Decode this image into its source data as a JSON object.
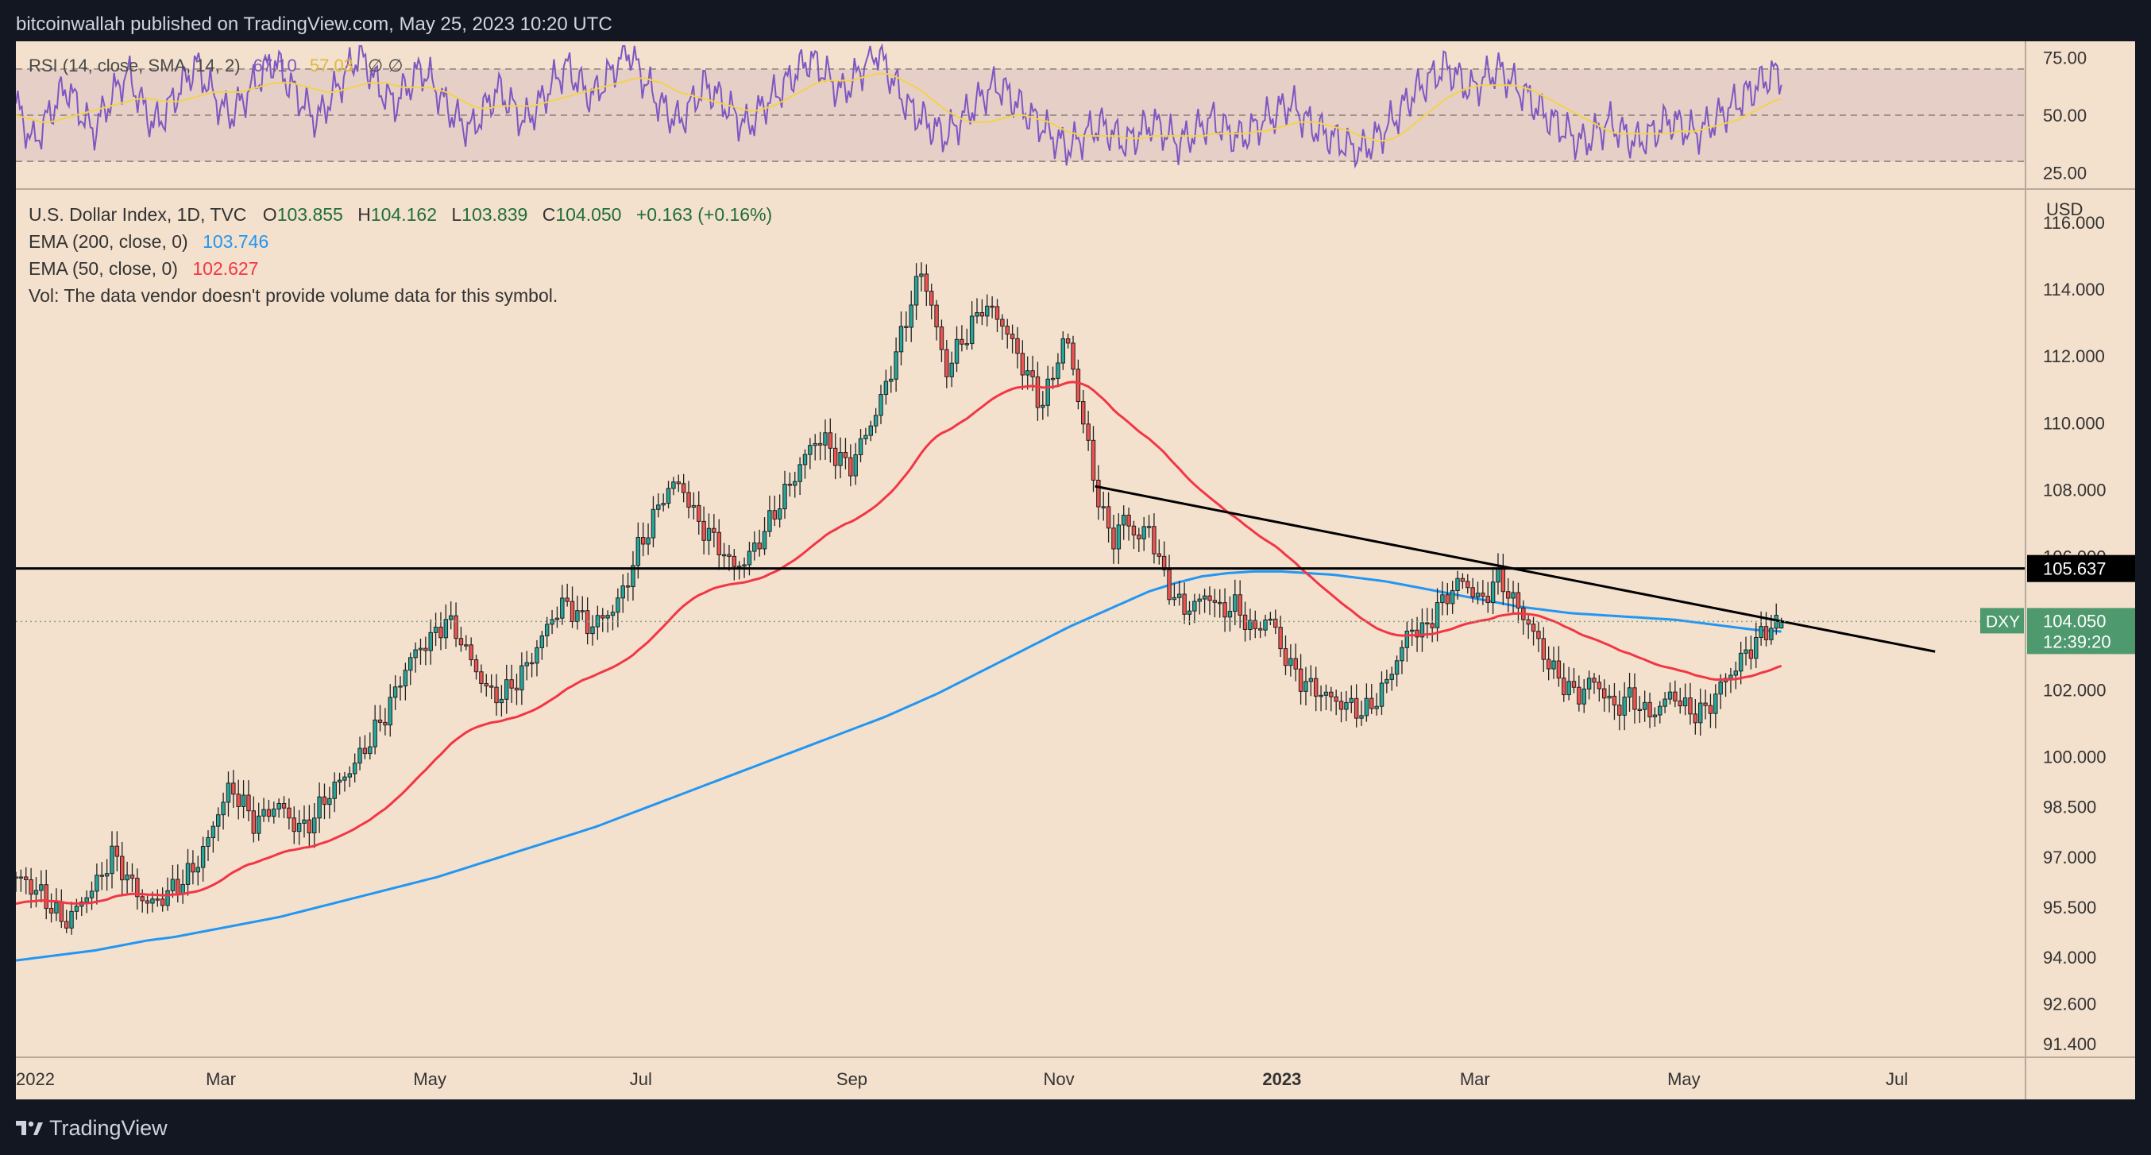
{
  "header": {
    "published_by": "bitcoinwallah published on TradingView.com, May 25, 2023 10:20 UTC"
  },
  "footer": {
    "brand": "TradingView"
  },
  "chart_data": [
    {
      "type": "line",
      "panel": "RSI",
      "indicator_label": "RSI (14, close, SMA, 14, 2)",
      "rsi_value": "67.10",
      "rsi_sma_value": "57.03",
      "extra_glyphs": "∅  ∅",
      "y_ticks": [
        "75.00",
        "50.00",
        "25.00"
      ],
      "ylim": [
        18,
        82
      ],
      "bands": [
        30,
        50,
        70
      ],
      "colors": {
        "rsi": "#7e57c2",
        "sma": "#f2d34b",
        "band_fill": "#e6cfc7"
      },
      "rsi_series": [
        55,
        46,
        38,
        44,
        51,
        58,
        62,
        55,
        48,
        43,
        50,
        57,
        63,
        68,
        60,
        52,
        46,
        49,
        55,
        61,
        67,
        72,
        65,
        58,
        53,
        50,
        55,
        60,
        65,
        70,
        74,
        68,
        62,
        57,
        52,
        48,
        54,
        60,
        66,
        72,
        77,
        70,
        63,
        58,
        55,
        60,
        65,
        70,
        66,
        60,
        54,
        49,
        46,
        44,
        50,
        56,
        61,
        57,
        52,
        47,
        51,
        56,
        62,
        67,
        71,
        66,
        61,
        58,
        63,
        68,
        73,
        79,
        72,
        65,
        59,
        54,
        50,
        47,
        52,
        58,
        63,
        60,
        56,
        52,
        48,
        45,
        50,
        55,
        58,
        62,
        66,
        70,
        74,
        72,
        68,
        63,
        60,
        64,
        69,
        74,
        78,
        71,
        64,
        57,
        52,
        49,
        46,
        43,
        41,
        45,
        49,
        53,
        57,
        61,
        63,
        60,
        56,
        52,
        49,
        46,
        42,
        39,
        36,
        38,
        41,
        44,
        46,
        43,
        40,
        38,
        41,
        44,
        47,
        44,
        41,
        38,
        40,
        43,
        46,
        48,
        45,
        42,
        40,
        42,
        45,
        48,
        50,
        53,
        55,
        51,
        47,
        44,
        42,
        40,
        38,
        36,
        34,
        37,
        40,
        44,
        48,
        53,
        58,
        62,
        65,
        68,
        71,
        68,
        64,
        61,
        64,
        67,
        70,
        67,
        63,
        60,
        56,
        52,
        49,
        46,
        43,
        40,
        38,
        41,
        44,
        47,
        44,
        41,
        38,
        40,
        42,
        45,
        48,
        46,
        44,
        42,
        44,
        47,
        50,
        53,
        56,
        59,
        62,
        65,
        68,
        67.1
      ],
      "sma_series": [
        50,
        49,
        48,
        47,
        47,
        48,
        49,
        50,
        51,
        52,
        53,
        54,
        55,
        56,
        57,
        57,
        57,
        56,
        56,
        56,
        57,
        58,
        59,
        60,
        60,
        60,
        60,
        61,
        62,
        63,
        64,
        64,
        64,
        63,
        62,
        61,
        60,
        60,
        61,
        62,
        63,
        64,
        64,
        64,
        63,
        62,
        62,
        62,
        62,
        61,
        60,
        58,
        56,
        54,
        53,
        53,
        54,
        54,
        54,
        54,
        54,
        55,
        56,
        57,
        58,
        59,
        60,
        61,
        62,
        63,
        64,
        65,
        66,
        66,
        65,
        64,
        62,
        60,
        59,
        58,
        57,
        56,
        55,
        54,
        53,
        52,
        52,
        53,
        54,
        56,
        58,
        60,
        62,
        64,
        65,
        65,
        65,
        65,
        66,
        67,
        68,
        68,
        67,
        65,
        63,
        61,
        58,
        55,
        52,
        50,
        48,
        47,
        47,
        47,
        48,
        49,
        50,
        50,
        49,
        48,
        47,
        45,
        43,
        42,
        41,
        41,
        41,
        41,
        41,
        40,
        40,
        40,
        41,
        41,
        41,
        41,
        41,
        41,
        41,
        42,
        42,
        42,
        42,
        42,
        43,
        43,
        44,
        45,
        46,
        47,
        47,
        47,
        46,
        45,
        44,
        43,
        41,
        40,
        39,
        39,
        40,
        42,
        45,
        48,
        51,
        54,
        57,
        59,
        61,
        62,
        63,
        63,
        63,
        63,
        63,
        62,
        61,
        59,
        57,
        55,
        53,
        51,
        49,
        47,
        45,
        43,
        42,
        42,
        42,
        42,
        42,
        42,
        42,
        43,
        43,
        43,
        44,
        45,
        46,
        47,
        48,
        50,
        52,
        54,
        56,
        57.03
      ]
    },
    {
      "type": "candlestick",
      "panel": "price",
      "symbol_line": "U.S. Dollar Index, 1D, TVC",
      "ohlc": {
        "O": "103.855",
        "H": "104.162",
        "L": "103.839",
        "C": "104.050",
        "change": "+0.163 (+0.16%)"
      },
      "ema200_label": "EMA (200, close, 0)",
      "ema200_value": "103.746",
      "ema50_label": "EMA (50, close, 0)",
      "ema50_value": "102.627",
      "volume_note": "Vol: The data vendor doesn't provide volume data for this symbol.",
      "currency_label": "USD",
      "y_ticks": [
        "116.000",
        "114.000",
        "112.000",
        "110.000",
        "108.000",
        "106.000",
        "104.000",
        "102.000",
        "100.000",
        "98.500",
        "97.000",
        "95.500",
        "94.000",
        "92.600",
        "91.400"
      ],
      "x_ticks": [
        "2022",
        "Mar",
        "May",
        "Jul",
        "Sep",
        "Nov",
        "2023",
        "Mar",
        "May",
        "Jul"
      ],
      "ylim": [
        91.0,
        117.0
      ],
      "horizontal_level": {
        "value": 105.637,
        "label": "105.637"
      },
      "last_price": {
        "symbol": "DXY",
        "value": "104.050",
        "countdown": "12:39:20"
      },
      "trendline": [
        [
          0.537,
          108.1
        ],
        [
          0.955,
          103.15
        ]
      ],
      "colors": {
        "up": "#26a69a",
        "down": "#ef5350",
        "ema200": "#2196f3",
        "ema50": "#f23645",
        "trendline": "#000000",
        "last_price_tag": "#4e9a6e"
      },
      "closes": [
        96.4,
        96.2,
        95.9,
        95.5,
        95.0,
        95.4,
        95.9,
        96.3,
        97.1,
        96.6,
        96.0,
        95.6,
        95.7,
        96.0,
        96.3,
        96.7,
        97.4,
        98.4,
        99.1,
        98.6,
        98.0,
        98.3,
        98.6,
        98.1,
        97.8,
        98.2,
        98.8,
        99.2,
        99.6,
        100.1,
        100.7,
        101.3,
        102.1,
        102.9,
        103.3,
        103.6,
        104.1,
        103.7,
        103.0,
        102.3,
        101.8,
        101.9,
        102.3,
        102.8,
        103.5,
        104.2,
        104.6,
        104.3,
        103.9,
        104.1,
        104.4,
        105.0,
        106.1,
        106.8,
        107.6,
        108.2,
        108.0,
        107.1,
        106.7,
        106.3,
        105.7,
        105.8,
        106.3,
        106.9,
        107.6,
        108.2,
        108.9,
        109.5,
        109.4,
        108.9,
        108.7,
        109.5,
        110.2,
        111.2,
        112.3,
        113.6,
        114.6,
        113.1,
        111.5,
        112.3,
        112.8,
        113.5,
        113.3,
        112.8,
        112.0,
        111.3,
        110.5,
        111.5,
        112.7,
        110.9,
        109.0,
        107.3,
        106.5,
        107.2,
        106.5,
        106.9,
        105.6,
        104.8,
        104.4,
        104.6,
        104.9,
        104.3,
        104.6,
        104.1,
        103.7,
        104.3,
        103.3,
        102.6,
        102.2,
        102.0,
        101.8,
        101.6,
        101.5,
        101.3,
        101.7,
        102.3,
        103.1,
        103.9,
        103.7,
        104.4,
        104.8,
        105.3,
        105.0,
        104.6,
        105.4,
        105.0,
        104.4,
        103.9,
        103.1,
        102.5,
        102.1,
        101.8,
        102.3,
        102.0,
        101.4,
        101.8,
        101.6,
        101.2,
        101.6,
        101.9,
        101.4,
        101.3,
        101.5,
        102.2,
        102.6,
        103.1,
        103.5,
        103.9,
        104.05
      ],
      "ema200_series": [
        93.9,
        94.0,
        94.1,
        94.2,
        94.35,
        94.5,
        94.6,
        94.75,
        94.9,
        95.05,
        95.2,
        95.4,
        95.6,
        95.8,
        96.0,
        96.2,
        96.4,
        96.65,
        96.9,
        97.15,
        97.4,
        97.65,
        97.9,
        98.2,
        98.5,
        98.8,
        99.1,
        99.4,
        99.7,
        100.0,
        100.3,
        100.6,
        100.9,
        101.2,
        101.55,
        101.9,
        102.3,
        102.7,
        103.1,
        103.5,
        103.9,
        104.25,
        104.6,
        104.95,
        105.2,
        105.4,
        105.5,
        105.55,
        105.55,
        105.5,
        105.45,
        105.35,
        105.25,
        105.1,
        104.95,
        104.8,
        104.65,
        104.5,
        104.4,
        104.3,
        104.25,
        104.2,
        104.15,
        104.1,
        104.0,
        103.9,
        103.8,
        103.75
      ]
    }
  ]
}
